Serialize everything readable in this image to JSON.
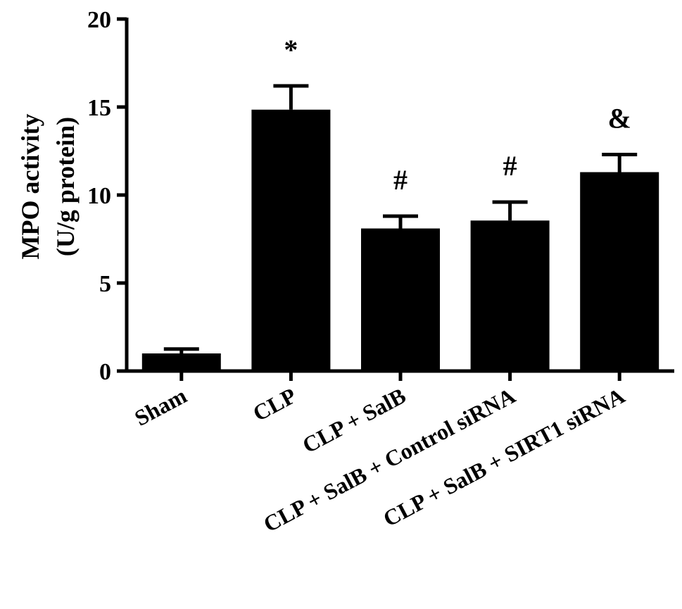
{
  "chart_data": {
    "type": "bar",
    "categories": [
      "Sham",
      "CLP",
      "CLP + SalB",
      "CLP + SalB + Control siRNA",
      "CLP + SalB + SIRT1 siRNA"
    ],
    "values": [
      1.0,
      14.85,
      8.1,
      8.55,
      11.3
    ],
    "errors": [
      0.25,
      1.35,
      0.7,
      1.05,
      1.0
    ],
    "annotations": [
      "",
      "*",
      "#",
      "#",
      "&"
    ],
    "ylabel_line1": "MPO activity",
    "ylabel_line2": "(U/g protein)",
    "ylim": [
      0,
      20
    ],
    "yticks": [
      0,
      5,
      10,
      15,
      20
    ],
    "bar_color": "#000000",
    "grid": false,
    "legend": "none"
  }
}
